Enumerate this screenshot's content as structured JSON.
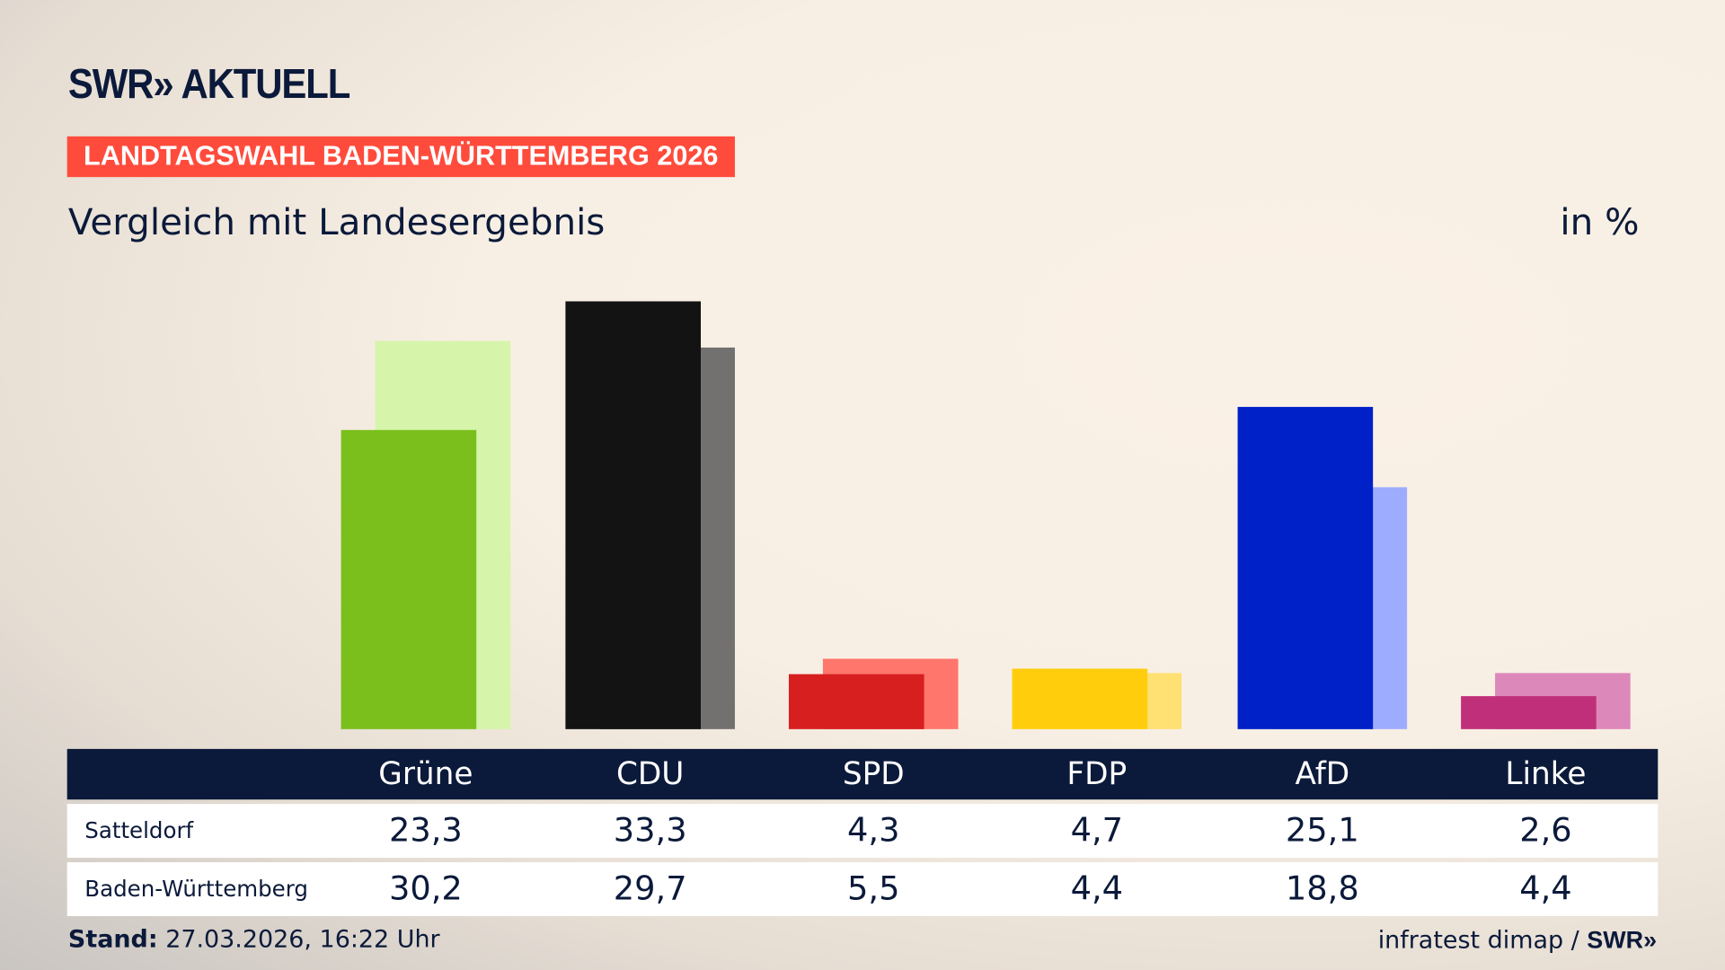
{
  "header": {
    "logo": "SWR» AKTUELL",
    "tag": "LANDTAGSWAHL BADEN-WÜRTTEMBERG 2026",
    "subtitle": "Vergleich mit Landesergebnis",
    "unit": "in %"
  },
  "chart_data": {
    "type": "bar",
    "categories": [
      "Grüne",
      "CDU",
      "SPD",
      "FDP",
      "AfD",
      "Linke"
    ],
    "series": [
      {
        "name": "Satteldorf",
        "values": [
          23.3,
          33.3,
          4.3,
          4.7,
          25.1,
          2.6
        ],
        "colors": [
          "#7abf1c",
          "#131313",
          "#d71f1f",
          "#ffcd0c",
          "#0020c8",
          "#c0307a"
        ]
      },
      {
        "name": "Baden-Württemberg",
        "values": [
          30.2,
          29.7,
          5.5,
          4.4,
          18.8,
          4.4
        ],
        "colors": [
          "#d6f5ab",
          "#737170",
          "#ff766c",
          "#ffe073",
          "#9dacff",
          "#dd88bb"
        ]
      }
    ],
    "ylim": [
      0,
      33.3
    ],
    "display_values": [
      [
        "23,3",
        "33,3",
        "4,3",
        "4,7",
        "25,1",
        "2,6"
      ],
      [
        "30,2",
        "29,7",
        "5,5",
        "4,4",
        "18,8",
        "4,4"
      ]
    ]
  },
  "footer": {
    "stand_label": "Stand:",
    "stand_value": "27.03.2026, 16:22 Uhr",
    "source": "infratest dimap / ",
    "source_logo": "SWR»"
  }
}
